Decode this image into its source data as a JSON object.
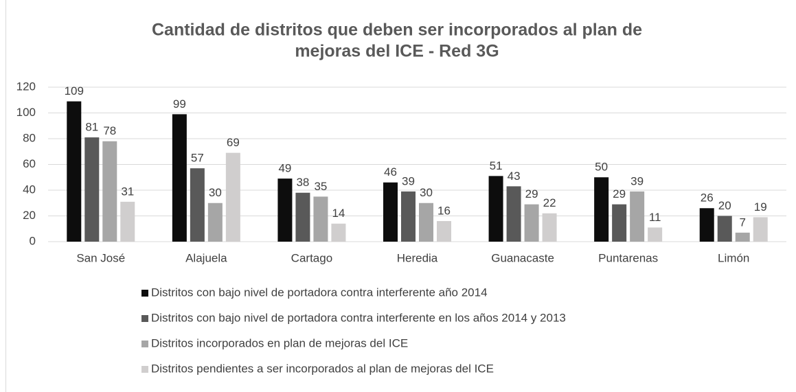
{
  "chart_data": {
    "type": "bar",
    "title": [
      "Cantidad de distritos que deben ser incorporados al plan de",
      "mejoras del ICE - Red 3G"
    ],
    "categories": [
      "San José",
      "Alajuela",
      "Cartago",
      "Heredia",
      "Guanacaste",
      "Puntarenas",
      "Limón"
    ],
    "series": [
      {
        "name": "Distritos con bajo nivel de portadora contra interferente año 2014",
        "color": "#0d0d0d",
        "values": [
          109,
          99,
          49,
          46,
          51,
          50,
          26
        ]
      },
      {
        "name": "Distritos con bajo nivel de portadora contra interferente en los años 2014 y 2013",
        "color": "#595959",
        "values": [
          81,
          57,
          38,
          39,
          43,
          29,
          20
        ]
      },
      {
        "name": "Distritos incorporados en plan de mejoras del ICE",
        "color": "#a6a6a6",
        "values": [
          78,
          30,
          35,
          30,
          29,
          39,
          7
        ]
      },
      {
        "name": "Distritos pendientes a ser incorporados al plan de mejoras del ICE",
        "color": "#d0cece",
        "values": [
          31,
          69,
          14,
          16,
          22,
          11,
          19
        ]
      }
    ],
    "ylim": [
      0,
      120
    ],
    "yticks": [
      0,
      20,
      40,
      60,
      80,
      100,
      120
    ],
    "grid": true,
    "legend": "bottom"
  }
}
